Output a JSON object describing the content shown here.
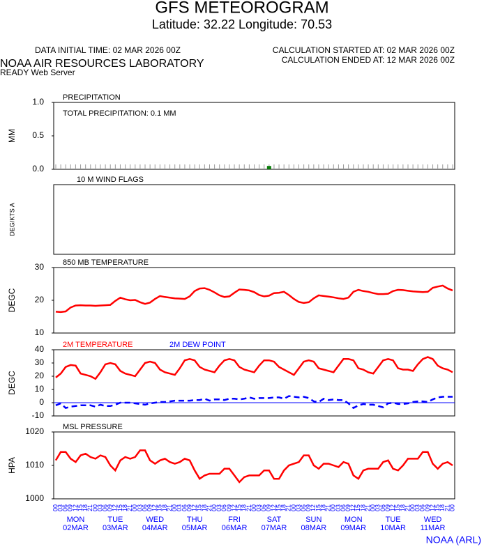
{
  "header": {
    "title": "GFS METEOROGRAM",
    "subtitle": "Latitude: 32.22 Longitude:  70.53",
    "data_time": "DATA INITIAL TIME: 02 MAR 2026 00Z",
    "calc_start": "CALCULATION STARTED AT: 02 MAR 2026 00Z",
    "calc_end": "CALCULATION ENDED AT: 12 MAR 2026 00Z",
    "org": "NOAA AIR RESOURCES LABORATORY",
    "server": "READY Web Server"
  },
  "footer": "NOAA (ARL)",
  "x_axis": {
    "hours": [
      "00",
      "03",
      "06",
      "09",
      "12",
      "15",
      "18",
      "21",
      "00",
      "03",
      "06",
      "09",
      "12",
      "15",
      "18",
      "21",
      "00",
      "03",
      "06",
      "09",
      "12",
      "15",
      "18",
      "21",
      "00",
      "03",
      "06",
      "09",
      "12",
      "15",
      "18",
      "21",
      "00",
      "03",
      "06",
      "09",
      "12",
      "15",
      "18",
      "21",
      "00",
      "03",
      "06",
      "09",
      "12",
      "15",
      "18",
      "21",
      "00",
      "03",
      "06",
      "09",
      "12",
      "15",
      "18",
      "21",
      "00",
      "03",
      "06",
      "09",
      "12",
      "15",
      "18",
      "21",
      "00",
      "03",
      "06",
      "09",
      "12",
      "15",
      "18",
      "21",
      "00",
      "03",
      "06",
      "09",
      "12",
      "15",
      "18",
      "21",
      "00"
    ],
    "days": [
      {
        "weekday": "MON",
        "date": "02MAR"
      },
      {
        "weekday": "TUE",
        "date": "03MAR"
      },
      {
        "weekday": "WED",
        "date": "04MAR"
      },
      {
        "weekday": "THU",
        "date": "05MAR"
      },
      {
        "weekday": "FRI",
        "date": "06MAR"
      },
      {
        "weekday": "SAT",
        "date": "07MAR"
      },
      {
        "weekday": "SUN",
        "date": "08MAR"
      },
      {
        "weekday": "MON",
        "date": "09MAR"
      },
      {
        "weekday": "TUE",
        "date": "10MAR"
      },
      {
        "weekday": "WED",
        "date": "11MAR"
      }
    ]
  },
  "chart_data": [
    {
      "type": "bar",
      "title": "PRECIPITATION",
      "annotation": "TOTAL PRECIPITATION:   0.1 MM",
      "ylabel": "MM",
      "color": "#0a7d0a",
      "ylim": [
        0,
        1
      ],
      "yticks": [
        {
          "value": 0,
          "label": "0.0"
        },
        {
          "value": 0.5,
          "label": "0.5"
        },
        {
          "value": 1,
          "label": "1.0"
        }
      ],
      "values": [
        0,
        0,
        0,
        0,
        0,
        0,
        0,
        0,
        0,
        0,
        0,
        0,
        0,
        0,
        0,
        0,
        0,
        0,
        0,
        0,
        0,
        0,
        0,
        0,
        0,
        0,
        0,
        0,
        0,
        0,
        0,
        0,
        0,
        0,
        0,
        0,
        0,
        0,
        0,
        0,
        0,
        0,
        0,
        0.05,
        0,
        0,
        0,
        0,
        0,
        0,
        0,
        0,
        0,
        0,
        0,
        0,
        0,
        0,
        0,
        0,
        0,
        0,
        0,
        0,
        0,
        0,
        0,
        0,
        0,
        0,
        0,
        0,
        0,
        0,
        0,
        0,
        0,
        0,
        0,
        0,
        0
      ]
    },
    {
      "type": "wind",
      "title": "10 M  WIND FLAGS",
      "ylabel": "DEG/KTS  A"
    },
    {
      "type": "line",
      "title": "850 MB  TEMPERATURE",
      "ylabel": "DEGC",
      "ylim": [
        10,
        30
      ],
      "yticks": [
        10,
        20,
        30
      ],
      "series": [
        {
          "color": "#ff0000",
          "values": [
            16.5,
            16.4,
            16.6,
            17.8,
            18.4,
            18.5,
            18.4,
            18.4,
            18.3,
            18.4,
            18.5,
            18.6,
            19.8,
            20.8,
            20.3,
            20.0,
            20.1,
            19.4,
            18.9,
            19.3,
            20.4,
            21.3,
            21.0,
            20.8,
            20.6,
            20.5,
            20.4,
            21.2,
            22.8,
            23.6,
            23.7,
            23.2,
            22.4,
            21.5,
            21.0,
            21.2,
            22.3,
            23.3,
            23.2,
            23.0,
            22.5,
            21.6,
            21.2,
            21.4,
            22.2,
            22.3,
            22.6,
            21.6,
            20.4,
            19.5,
            19.2,
            19.4,
            20.6,
            21.5,
            21.3,
            21.1,
            20.9,
            20.6,
            20.4,
            20.8,
            22.6,
            23.2,
            22.8,
            22.6,
            22.2,
            21.9,
            21.9,
            22.0,
            22.8,
            23.2,
            23.1,
            22.9,
            22.7,
            22.6,
            22.5,
            22.6,
            23.8,
            24.2,
            24.5,
            23.6,
            23.0
          ]
        }
      ]
    },
    {
      "type": "line",
      "ylabel": "DEGC",
      "ylim": [
        -10,
        40
      ],
      "yticks": [
        -10,
        0,
        10,
        20,
        30,
        40
      ],
      "zero_line": true,
      "series": [
        {
          "name": "2M TEMPERATURE",
          "color": "#ff0000",
          "values": [
            19,
            22,
            27,
            28.5,
            28,
            22,
            21,
            20,
            18,
            23,
            29,
            30,
            29,
            24,
            22,
            21,
            20,
            25,
            30,
            31,
            30,
            25,
            23,
            22,
            21,
            26,
            32,
            33,
            32,
            27,
            25,
            24,
            23,
            28,
            32,
            33,
            32,
            27,
            25,
            24,
            23,
            28,
            32,
            32,
            31,
            27,
            25,
            23,
            21,
            26,
            31,
            32,
            31,
            26,
            25,
            24,
            23,
            28,
            33,
            33,
            32,
            26,
            25,
            23,
            22,
            27,
            32,
            33,
            32,
            26,
            25,
            25,
            24,
            29,
            33,
            34.5,
            33,
            28,
            26,
            25,
            23
          ]
        },
        {
          "name": "2M  DEW POINT",
          "color": "#0000ff",
          "dash": true,
          "values": [
            -2,
            -0.5,
            -4,
            -3,
            -2.5,
            -2,
            -2,
            -2,
            -3,
            -1.5,
            -2.5,
            -2.5,
            -1.5,
            0,
            0,
            0,
            -0.5,
            -1,
            -1.5,
            -0.5,
            0,
            0.5,
            0.5,
            1,
            1.5,
            1.5,
            1.5,
            1.5,
            2,
            2,
            3,
            1.5,
            2.5,
            2.5,
            2,
            3,
            3,
            2.5,
            3,
            4,
            3,
            3.5,
            3.5,
            3.5,
            4,
            4,
            3,
            5,
            4.5,
            4,
            4.5,
            3.5,
            1,
            0.5,
            3,
            2,
            2.5,
            2,
            2,
            -0.5,
            -4,
            -2,
            -1,
            -1.5,
            -1.5,
            -2.5,
            -3.5,
            -0.5,
            0,
            -1,
            -1,
            -0.5,
            0.5,
            1,
            1,
            0.5,
            2.5,
            4,
            4.5,
            4.5,
            4.5
          ]
        }
      ]
    },
    {
      "type": "line",
      "title": "MSL PRESSURE",
      "ylabel": "HPA",
      "ylim": [
        1000,
        1020
      ],
      "yticks": [
        1000,
        1010,
        1020
      ],
      "series": [
        {
          "color": "#ff0000",
          "values": [
            1011.5,
            1014,
            1014,
            1012,
            1011,
            1013,
            1013.5,
            1012.5,
            1012,
            1013,
            1012.5,
            1010,
            1008.5,
            1011.5,
            1012.5,
            1012,
            1012.5,
            1014.5,
            1014.5,
            1011.5,
            1010.5,
            1011.5,
            1012,
            1011,
            1010.5,
            1011,
            1012,
            1011.5,
            1008.5,
            1006,
            1007,
            1007.5,
            1007.5,
            1007.5,
            1009,
            1009,
            1007,
            1005,
            1006.5,
            1007,
            1007,
            1007,
            1008.5,
            1008.5,
            1006,
            1006,
            1008.5,
            1010,
            1010.5,
            1011,
            1013,
            1013,
            1010,
            1009,
            1010.5,
            1010.5,
            1010,
            1009.5,
            1011,
            1010.5,
            1007,
            1006,
            1008.5,
            1009,
            1009,
            1009,
            1011,
            1011.5,
            1009,
            1008.5,
            1010,
            1012,
            1012,
            1012,
            1014,
            1014,
            1010.5,
            1009,
            1010.5,
            1011,
            1010
          ]
        }
      ]
    }
  ]
}
